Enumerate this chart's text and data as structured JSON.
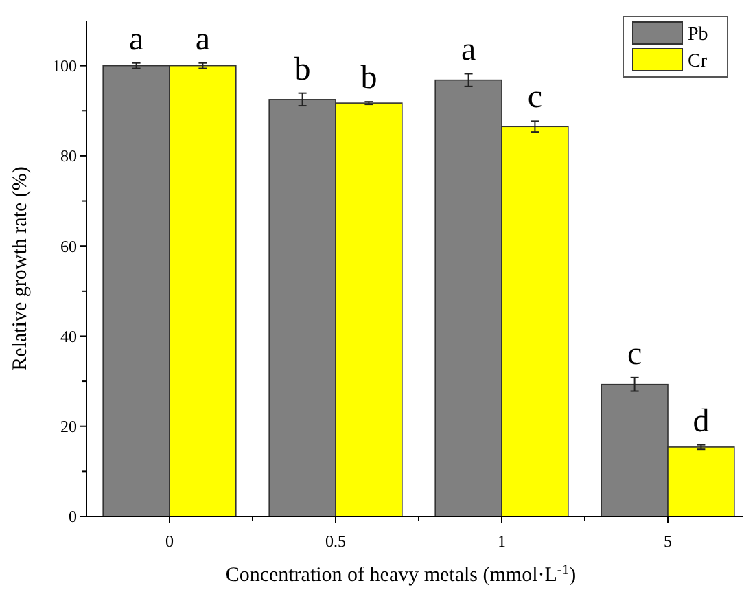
{
  "chart_data": {
    "type": "bar",
    "xlabel": "Concentration of heavy metals (mmol·L$^{-1}$)",
    "ylabel": "Relative growth rate (%)",
    "categories": [
      "0",
      "0.5",
      "1",
      "5"
    ],
    "series": [
      {
        "name": "Pb",
        "color": "#808080",
        "values": [
          100,
          92.5,
          96.8,
          29.3
        ],
        "errors": [
          0.6,
          1.4,
          1.4,
          1.5
        ]
      },
      {
        "name": "Cr",
        "color": "#ffff00",
        "values": [
          100,
          91.7,
          86.5,
          15.4
        ],
        "errors": [
          0.6,
          0.3,
          1.2,
          0.5
        ]
      }
    ],
    "ylim": [
      0,
      110
    ],
    "yticks": [
      0,
      {
        "value": 10,
        "label": null
      },
      20,
      {
        "value": 30,
        "label": null
      },
      40,
      {
        "value": 50,
        "label": null
      },
      60,
      {
        "value": 70,
        "label": null
      },
      80,
      {
        "value": 90,
        "label": null
      },
      100
    ],
    "annotations": [
      "a",
      "a",
      "b",
      "b",
      "a",
      "c",
      "c",
      "d"
    ],
    "legend": "top right",
    "grid": false
  }
}
